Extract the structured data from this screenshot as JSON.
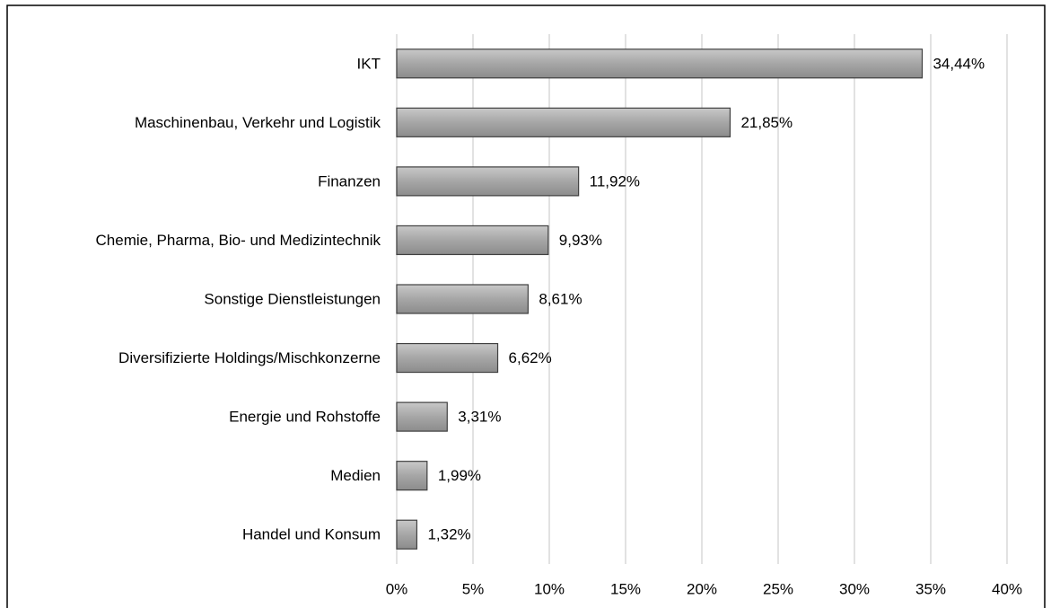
{
  "chart_data": {
    "type": "barh",
    "categories": [
      "IKT",
      "Maschinenbau, Verkehr und Logistik",
      "Finanzen",
      "Chemie, Pharma, Bio- und Medizintechnik",
      "Sonstige Dienstleistungen",
      "Diversifizierte Holdings/Mischkonzerne",
      "Energie und Rohstoffe",
      "Medien",
      "Handel und Konsum"
    ],
    "values": [
      34.44,
      21.85,
      11.92,
      9.93,
      8.61,
      6.62,
      3.31,
      1.99,
      1.32
    ],
    "value_labels": [
      "34,44%",
      "21,85%",
      "11,92%",
      "9,93%",
      "8,61%",
      "6,62%",
      "3,31%",
      "1,99%",
      "1,32%"
    ],
    "color": "#a6a6a6",
    "xlim": [
      0,
      40
    ],
    "xticks": [
      {
        "value": 0,
        "label": "0%"
      },
      {
        "value": 5,
        "label": "5%"
      },
      {
        "value": 10,
        "label": "10%"
      },
      {
        "value": 15,
        "label": "15%"
      },
      {
        "value": 20,
        "label": "20%"
      },
      {
        "value": 25,
        "label": "25%"
      },
      {
        "value": 30,
        "label": "30%"
      },
      {
        "value": 35,
        "label": "35%"
      },
      {
        "value": 40,
        "label": "40%"
      }
    ],
    "grid": true
  }
}
